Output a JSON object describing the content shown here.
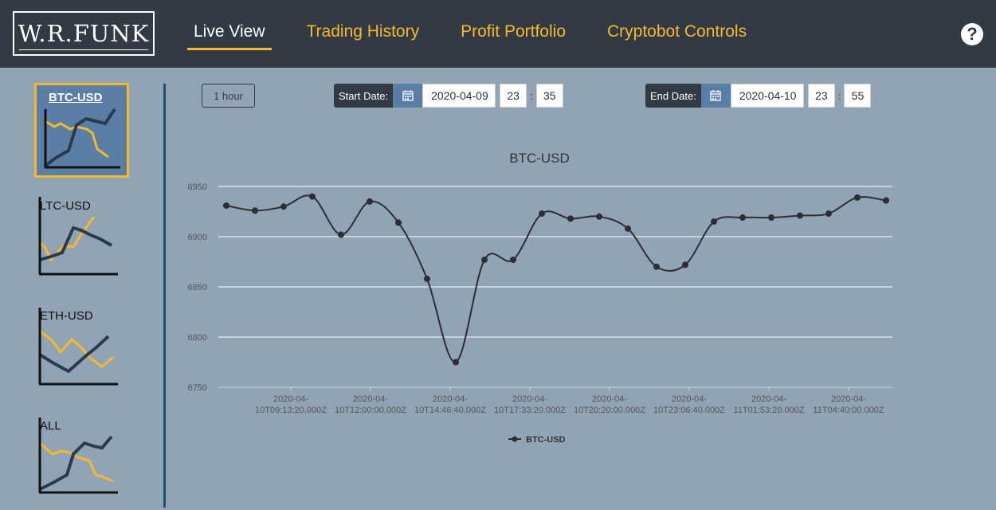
{
  "header": {
    "logo": "W.R.FUNK",
    "nav": [
      {
        "label": "Live View",
        "active": true
      },
      {
        "label": "Trading History",
        "active": false
      },
      {
        "label": "Profit Portfolio",
        "active": false
      },
      {
        "label": "Cryptobot Controls",
        "active": false
      }
    ],
    "help_icon": "question-circle-icon"
  },
  "sidebar": {
    "items": [
      {
        "label": "BTC-USD",
        "selected": true
      },
      {
        "label": "LTC-USD",
        "selected": false
      },
      {
        "label": "ETH-USD",
        "selected": false
      },
      {
        "label": "ALL",
        "selected": false
      }
    ]
  },
  "controls": {
    "range_button": "1 hour",
    "start": {
      "label": "Start Date:",
      "date": "2020-04-09",
      "hour": "23",
      "minute": "35"
    },
    "end": {
      "label": "End Date:",
      "date": "2020-04-10",
      "hour": "23",
      "minute": "55"
    },
    "colon": ":",
    "calendar_icon": "calendar-icon"
  },
  "colors": {
    "accent": "#f5b82e",
    "header": "#343a44",
    "background": "#91a4b5",
    "selected": "#5b7ea6",
    "line": "#2d2d33"
  },
  "chart_data": {
    "type": "line",
    "title": "BTC-USD",
    "ylim": [
      6750,
      6950
    ],
    "yticks": [
      6750,
      6800,
      6850,
      6900,
      6950
    ],
    "xtick_labels": [
      [
        "2020-04-",
        "10T09:13:20.000Z"
      ],
      [
        "2020-04-",
        "10T12:00:00.000Z"
      ],
      [
        "2020-04-",
        "10T14:46:40.000Z"
      ],
      [
        "2020-04-",
        "10T17:33:20.000Z"
      ],
      [
        "2020-04-",
        "10T20:20:00.000Z"
      ],
      [
        "2020-04-",
        "10T23:06:40.000Z"
      ],
      [
        "2020-04-",
        "11T01:53:20.000Z"
      ],
      [
        "2020-04-",
        "11T04:40:00.000Z"
      ]
    ],
    "series": [
      {
        "name": "BTC-USD",
        "values": [
          6931,
          6926,
          6930,
          6940,
          6902,
          6935,
          6914,
          6858,
          6775,
          6877,
          6877,
          6923,
          6918,
          6920,
          6908,
          6870,
          6872,
          6915,
          6919,
          6919,
          6921,
          6923,
          6939,
          6936
        ]
      }
    ]
  }
}
